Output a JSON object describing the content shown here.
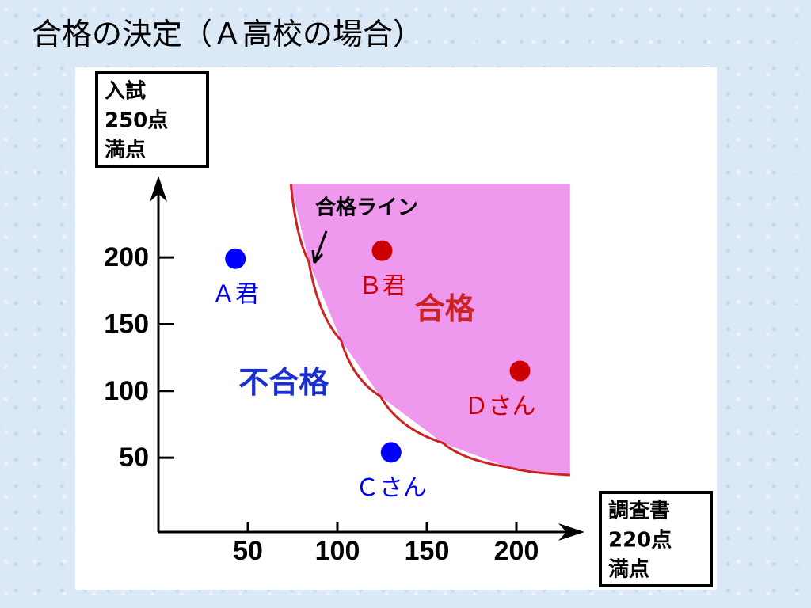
{
  "chart_data": {
    "type": "scatter",
    "title": "合格の決定（Ａ高校の場合）",
    "y_axis_label": [
      "入試",
      "250点",
      "満点"
    ],
    "x_axis_label": [
      "調査書",
      "220点",
      "満点"
    ],
    "xlim": [
      0,
      235
    ],
    "ylim": [
      0,
      256
    ],
    "xticks": [
      50,
      100,
      150,
      200
    ],
    "yticks": [
      50,
      100,
      150,
      200
    ],
    "series": [
      {
        "name": "Ａ君",
        "color": "#0000ff",
        "x": [
          43
        ],
        "values": [
          199
        ]
      },
      {
        "name": "Ｂ君",
        "color": "#cc0000",
        "x": [
          125
        ],
        "values": [
          205
        ]
      },
      {
        "name": "Ｃさん",
        "color": "#0000ff",
        "x": [
          130
        ],
        "values": [
          54
        ]
      },
      {
        "name": "Ｄさん",
        "color": "#cc0000",
        "x": [
          202
        ],
        "values": [
          115
        ]
      }
    ],
    "pass_line": {
      "label": "合格ライン",
      "color": "#cc2222",
      "fill": "#ee99ee",
      "x": [
        74,
        84,
        102,
        124,
        159,
        195,
        230
      ],
      "values": [
        255,
        197,
        138,
        96,
        61,
        43,
        37
      ]
    },
    "region_labels": [
      {
        "text": "合格",
        "x": 160,
        "y": 160,
        "color": "#cc2222"
      },
      {
        "text": "不合格",
        "x": 70,
        "y": 105,
        "color": "#1a2fd0"
      }
    ]
  }
}
